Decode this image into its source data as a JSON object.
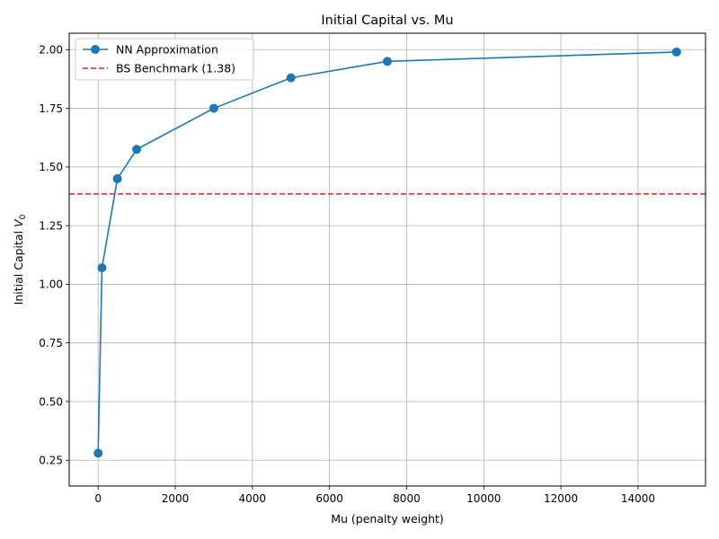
{
  "chart_data": {
    "type": "line",
    "title": "Initial Capital vs. Mu",
    "xlabel": "Mu (penalty weight)",
    "ylabel_prefix": "Initial Capital ",
    "ylabel_var": "V",
    "ylabel_sub": "0",
    "xlim": [
      -750,
      15750
    ],
    "ylim": [
      0.14,
      2.07
    ],
    "xticks": [
      0,
      2000,
      4000,
      6000,
      8000,
      10000,
      12000,
      14000
    ],
    "xtick_labels": [
      "0",
      "2000",
      "4000",
      "6000",
      "8000",
      "10000",
      "12000",
      "14000"
    ],
    "yticks": [
      0.25,
      0.5,
      0.75,
      1.0,
      1.25,
      1.5,
      1.75,
      2.0
    ],
    "ytick_labels": [
      "0.25",
      "0.50",
      "0.75",
      "1.00",
      "1.25",
      "1.50",
      "1.75",
      "2.00"
    ],
    "grid": true,
    "legend_position": "top-left",
    "series": [
      {
        "name": "NN Approximation",
        "color": "#1f77b4",
        "style": "solid-line-with-circle-markers",
        "x": [
          0,
          100,
          500,
          1000,
          3000,
          5000,
          7500,
          15000
        ],
        "y": [
          0.28,
          1.07,
          1.45,
          1.575,
          1.75,
          1.88,
          1.95,
          1.99
        ]
      }
    ],
    "reference_lines": [
      {
        "name": "BS Benchmark (1.38)",
        "orientation": "horizontal",
        "value": 1.385,
        "color": "#d62728",
        "style": "dashed"
      }
    ]
  }
}
